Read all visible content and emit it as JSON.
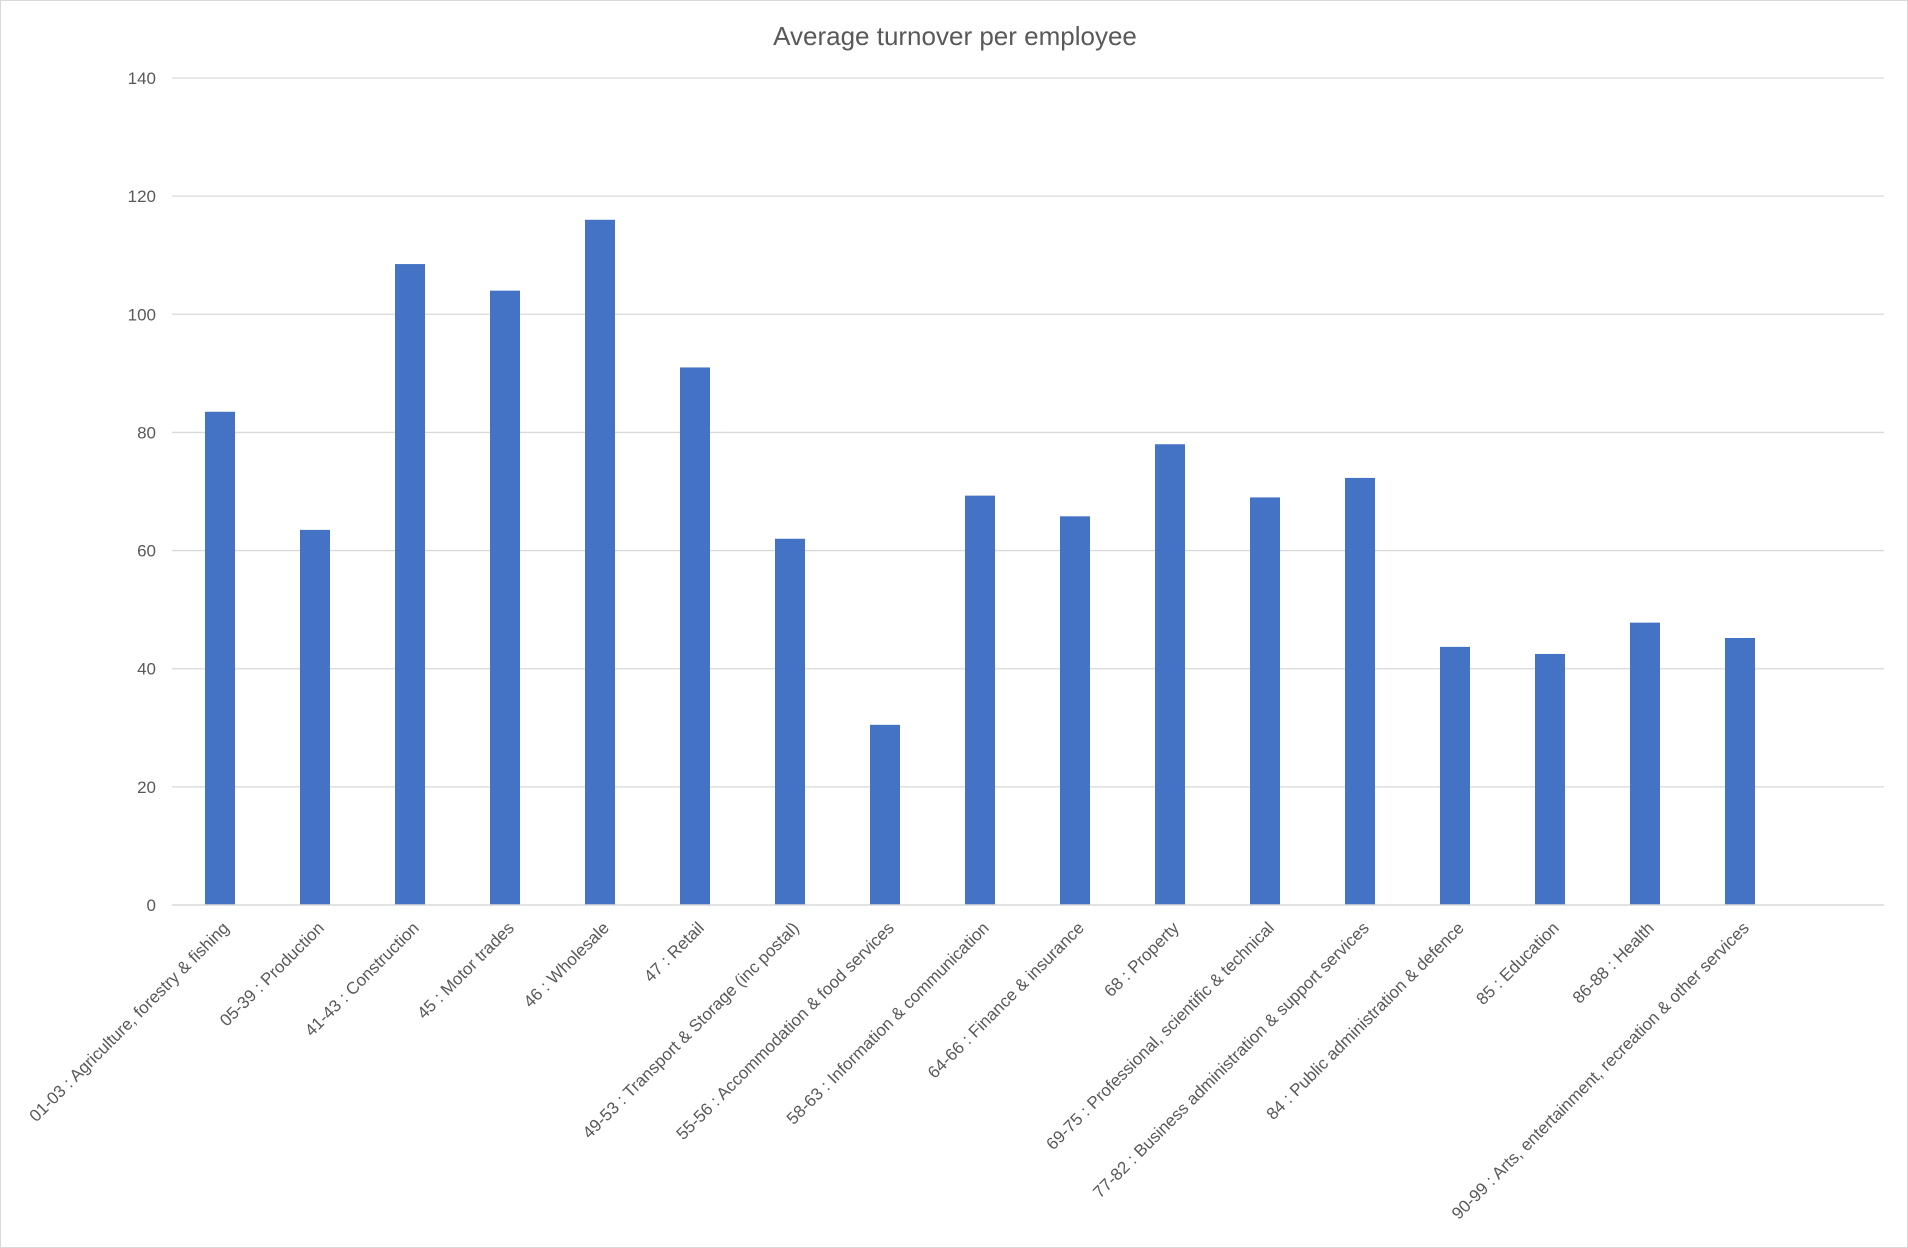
{
  "chart_data": {
    "type": "bar",
    "title": "Average turnover per employee",
    "xlabel": "",
    "ylabel": "",
    "ylim": [
      0,
      140
    ],
    "yticks": [
      0,
      20,
      40,
      60,
      80,
      100,
      120,
      140
    ],
    "grid": true,
    "legend": "none",
    "bar_color": "#4472C4",
    "categories": [
      "01-03 : Agriculture, forestry & fishing",
      "05-39 : Production",
      "41-43 : Construction",
      "45 : Motor trades",
      "46 : Wholesale",
      "47 : Retail",
      "49-53 : Transport & Storage (inc postal)",
      "55-56 : Accommodation & food services",
      "58-63 : Information & communication",
      "64-66 : Finance & insurance",
      "68 : Property",
      "69-75 : Professional, scientific & technical",
      "77-82 : Business administration & support services",
      "84 : Public administration & defence",
      "85 : Education",
      "86-88 : Health",
      "90-99 : Arts, entertainment, recreation & other services"
    ],
    "values": [
      83.5,
      63.5,
      108.5,
      104,
      116,
      91,
      62,
      30.5,
      69.3,
      65.8,
      78,
      69,
      72.3,
      43.7,
      42.5,
      47.8,
      45.2
    ]
  }
}
